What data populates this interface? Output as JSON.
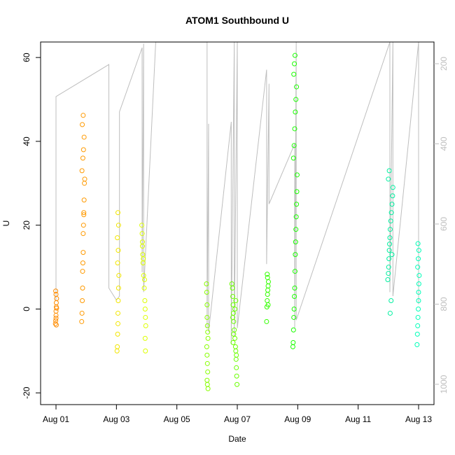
{
  "chart_data": {
    "type": "scatter",
    "title": "ATOM1 Southbound U",
    "x_label": "Date",
    "y_label": "U",
    "xlim": [
      0.49,
      13.51
    ],
    "xticks": [
      {
        "value": 1,
        "label": "Aug 01"
      },
      {
        "value": 3,
        "label": "Aug 03"
      },
      {
        "value": 5,
        "label": "Aug 05"
      },
      {
        "value": 7,
        "label": "Aug 07"
      },
      {
        "value": 9,
        "label": "Aug 09"
      },
      {
        "value": 11,
        "label": "Aug 11"
      },
      {
        "value": 13,
        "label": "Aug 13"
      }
    ],
    "ylim": [
      -22.8,
      63.7
    ],
    "yticks": [
      -20,
      0,
      20,
      40,
      60
    ],
    "y2lim": [
      1050.7,
      145.8
    ],
    "y2ticks": [
      200,
      400,
      600,
      800,
      1000
    ],
    "y2color": "#bebebe",
    "series": [
      {
        "color": "#ff8c00",
        "x": [
          0.98,
          0.99,
          1.0,
          1.0,
          1.01,
          1.01,
          1.02,
          1.0,
          0.99,
          1.01,
          1.0,
          1.02
        ],
        "values": [
          -3.5,
          -2.8,
          -1.5,
          -0.5,
          0.5,
          1.5,
          2.5,
          3.5,
          4.3,
          -3.8,
          -2.2,
          0.2
        ]
      },
      {
        "color": "#ff9a00",
        "x": [
          1.85,
          1.86,
          1.87,
          1.88,
          1.88,
          1.89,
          1.9,
          1.9,
          1.91,
          1.92,
          1.92,
          1.93,
          1.94,
          1.95,
          1.86,
          1.89,
          1.91,
          1.93,
          1.87,
          1.9
        ],
        "values": [
          -3,
          -1,
          2,
          5,
          9,
          11,
          13.5,
          18,
          20,
          22.5,
          23,
          26,
          30,
          31,
          33,
          36,
          38,
          41,
          44,
          46.2
        ]
      },
      {
        "color": "#f2e600",
        "x": [
          3.02,
          3.03,
          3.04,
          3.05,
          3.05,
          3.06,
          3.07,
          3.08,
          3.04,
          3.06,
          3.03,
          3.07,
          3.05
        ],
        "values": [
          -10,
          -9,
          -6,
          -3.5,
          -1,
          2,
          5,
          8,
          11,
          14,
          17,
          20,
          23
        ]
      },
      {
        "color": "#ddff00",
        "x": [
          3.84,
          3.85,
          3.86,
          3.87,
          3.88,
          3.9,
          3.92,
          3.94,
          3.95,
          3.96,
          3.97,
          3.86,
          3.89,
          3.93,
          3.95,
          3.96
        ],
        "values": [
          20,
          18,
          15,
          13,
          11,
          8,
          5,
          2,
          0,
          -2,
          -4,
          16,
          12,
          7,
          -7,
          -10
        ]
      },
      {
        "color": "#88ff00",
        "x": [
          5.98,
          5.99,
          6.0,
          6.0,
          6.01,
          6.02,
          6.03,
          5.99,
          6.0,
          6.01,
          6.02,
          6.0,
          6.03,
          6.01
        ],
        "values": [
          6,
          4,
          1,
          -2,
          -4,
          -5.5,
          -7,
          -9,
          -11,
          -13,
          -15,
          -17,
          -19,
          -18
        ]
      },
      {
        "color": "#6aff00",
        "x": [
          6.82,
          6.84,
          6.85,
          6.86,
          6.87,
          6.88,
          6.9,
          6.92,
          6.94,
          6.95,
          6.96,
          6.97,
          6.98,
          6.85,
          6.88,
          6.92,
          6.95,
          6.97,
          6.99,
          6.86
        ],
        "values": [
          6,
          5,
          3,
          1,
          -1,
          -3,
          -5,
          -7,
          -9,
          -10,
          -12,
          -14,
          -16,
          -2,
          -6,
          0,
          2,
          -11,
          -18,
          -8
        ]
      },
      {
        "color": "#33ff00",
        "x": [
          7.97,
          7.98,
          7.99,
          8.0,
          8.01,
          8.02,
          8.03,
          8.0,
          7.99,
          8.02
        ],
        "values": [
          -3,
          0.5,
          2,
          3.5,
          4.5,
          5.5,
          6.5,
          7.5,
          8.3,
          1
        ]
      },
      {
        "color": "#1aff00",
        "x": [
          8.84,
          8.85,
          8.86,
          8.87,
          8.88,
          8.89,
          8.9,
          8.91,
          8.92,
          8.93,
          8.94,
          8.95,
          8.96,
          8.97,
          8.98,
          8.86,
          8.88,
          8.9,
          8.92,
          8.94,
          8.96,
          8.87,
          8.89,
          8.91
        ],
        "values": [
          -9,
          -8,
          -5,
          -2,
          0,
          3,
          5,
          9,
          13,
          16,
          19,
          22,
          25,
          28,
          32,
          36,
          39,
          43,
          47,
          50,
          53,
          56,
          58.5,
          60.5
        ]
      },
      {
        "color": "#00f0a0",
        "x": [
          11.98,
          12.0,
          12.01,
          12.02,
          12.03,
          12.04,
          12.05,
          12.06,
          12.08,
          12.1,
          12.12,
          12.14,
          12.15,
          12.0,
          12.03,
          12.06,
          12.09,
          12.12
        ],
        "values": [
          7,
          8.5,
          10,
          12,
          14,
          15.5,
          17,
          19,
          21,
          23,
          25,
          27,
          29,
          31,
          33,
          -1,
          2,
          13
        ]
      },
      {
        "color": "#00ffb8",
        "x": [
          12.95,
          12.96,
          12.97,
          12.98,
          12.99,
          13.0,
          13.0,
          13.01,
          13.02,
          12.97,
          12.99,
          13.01,
          12.98
        ],
        "values": [
          -8.5,
          -6,
          -4,
          -2,
          0,
          2,
          4,
          6,
          8,
          10,
          12,
          14,
          15.6
        ]
      },
      {
        "type": "line",
        "axis": "y2",
        "color": "#bebebe",
        "x": [
          1.0,
          1.0,
          2.75,
          2.75,
          3.0,
          3.1,
          3.1,
          3.85,
          3.85,
          3.9,
          3.9,
          4.3,
          6.0,
          6.0,
          6.05,
          6.05,
          6.8,
          6.8,
          6.9,
          6.9,
          7.0,
          7.0,
          7.97,
          7.97,
          8.05,
          8.05,
          8.9,
          8.9,
          8.95,
          8.95,
          12.05,
          12.05,
          12.15,
          12.15,
          13.0,
          13.0
        ],
        "values": [
          790,
          282,
          202,
          760,
          790,
          780,
          320,
          160,
          720,
          150,
          770,
          146,
          146,
          860,
          350,
          870,
          345,
          900,
          146,
          880,
          146,
          860,
          215,
          700,
          250,
          550,
          400,
          860,
          146,
          840,
          146,
          770,
          146,
          780,
          146,
          800
        ]
      }
    ]
  }
}
